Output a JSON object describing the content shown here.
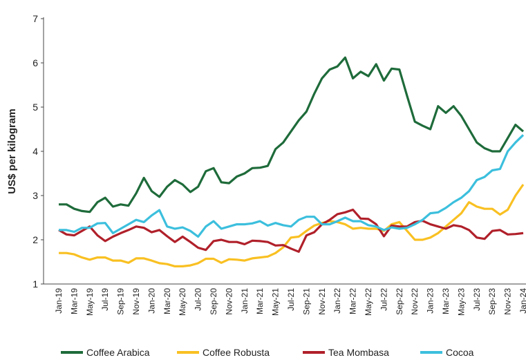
{
  "chart_data": {
    "type": "line",
    "y_label": "US$ per kilogram",
    "categories": [
      "Jan-19",
      null,
      "Mar-19",
      null,
      "May-19",
      null,
      "Jul-19",
      null,
      "Sep-19",
      null,
      "Nov-19",
      null,
      "Jan-20",
      null,
      "Mar-20",
      null,
      "May-20",
      null,
      "Jul-20",
      null,
      "Sep-20",
      null,
      "Nov-20",
      null,
      "Jan-21",
      null,
      "Mar-21",
      null,
      "May-21",
      null,
      "Jul-21",
      null,
      "Sep-21",
      null,
      "Nov-21",
      null,
      "Jan-22",
      null,
      "Mar-22",
      null,
      "May-22",
      null,
      "Jul-22",
      null,
      "Sep-22",
      null,
      "Nov-22",
      null,
      "Jan-23",
      null,
      "Mar-23",
      null,
      "May-23",
      null,
      "Jul-23",
      null,
      "Sep-23",
      null,
      "Nov-23",
      null,
      "Jan-24"
    ],
    "series": [
      {
        "name": "Coffee Arabica",
        "color": "#1e6b3a",
        "values": [
          2.8,
          2.8,
          2.7,
          2.65,
          2.63,
          2.85,
          2.95,
          2.75,
          2.8,
          2.77,
          3.05,
          3.4,
          3.1,
          2.97,
          3.2,
          3.35,
          3.25,
          3.08,
          3.2,
          3.55,
          3.62,
          3.3,
          3.28,
          3.43,
          3.5,
          3.62,
          3.63,
          3.67,
          4.05,
          4.2,
          4.45,
          4.7,
          4.9,
          5.3,
          5.65,
          5.85,
          5.92,
          6.12,
          5.65,
          5.8,
          5.7,
          5.97,
          5.6,
          5.87,
          5.85,
          5.25,
          4.67,
          4.58,
          4.5,
          5.02,
          4.87,
          5.02,
          4.8,
          4.5,
          4.2,
          4.07,
          4.0,
          4.0,
          4.3,
          4.6,
          4.45
        ]
      },
      {
        "name": "Coffee Robusta",
        "color": "#f9c022",
        "values": [
          1.7,
          1.7,
          1.67,
          1.6,
          1.55,
          1.6,
          1.6,
          1.53,
          1.53,
          1.48,
          1.58,
          1.58,
          1.53,
          1.47,
          1.45,
          1.4,
          1.4,
          1.42,
          1.47,
          1.57,
          1.57,
          1.48,
          1.56,
          1.55,
          1.53,
          1.58,
          1.6,
          1.62,
          1.7,
          1.83,
          2.05,
          2.07,
          2.2,
          2.32,
          2.38,
          2.42,
          2.4,
          2.35,
          2.25,
          2.27,
          2.25,
          2.25,
          2.2,
          2.35,
          2.4,
          2.2,
          2.0,
          2.0,
          2.05,
          2.15,
          2.3,
          2.45,
          2.6,
          2.85,
          2.75,
          2.7,
          2.7,
          2.57,
          2.68,
          3.0,
          3.25
        ]
      },
      {
        "name": "Tea Mombasa",
        "color": "#b0202a",
        "values": [
          2.22,
          2.12,
          2.1,
          2.2,
          2.3,
          2.1,
          1.97,
          2.07,
          2.15,
          2.22,
          2.3,
          2.27,
          2.17,
          2.22,
          2.08,
          1.95,
          2.07,
          1.95,
          1.82,
          1.77,
          1.97,
          2.0,
          1.95,
          1.95,
          1.9,
          1.98,
          1.97,
          1.95,
          1.87,
          1.88,
          1.8,
          1.73,
          2.1,
          2.17,
          2.35,
          2.45,
          2.58,
          2.62,
          2.68,
          2.48,
          2.47,
          2.35,
          2.08,
          2.32,
          2.3,
          2.3,
          2.4,
          2.43,
          2.35,
          2.3,
          2.25,
          2.33,
          2.3,
          2.22,
          2.05,
          2.02,
          2.2,
          2.22,
          2.12,
          2.13,
          2.15
        ]
      },
      {
        "name": "Cocoa",
        "color": "#3cbfdd",
        "values": [
          2.22,
          2.22,
          2.18,
          2.27,
          2.27,
          2.37,
          2.38,
          2.15,
          2.25,
          2.35,
          2.45,
          2.4,
          2.55,
          2.67,
          2.3,
          2.25,
          2.28,
          2.2,
          2.07,
          2.3,
          2.42,
          2.25,
          2.3,
          2.35,
          2.35,
          2.37,
          2.42,
          2.32,
          2.38,
          2.33,
          2.3,
          2.45,
          2.52,
          2.52,
          2.35,
          2.35,
          2.42,
          2.5,
          2.42,
          2.42,
          2.33,
          2.3,
          2.22,
          2.28,
          2.25,
          2.27,
          2.35,
          2.45,
          2.6,
          2.62,
          2.72,
          2.85,
          2.95,
          3.1,
          3.35,
          3.42,
          3.57,
          3.6,
          4.0,
          4.2,
          4.37
        ]
      }
    ],
    "ylim": [
      1,
      7
    ],
    "yticks": [
      1,
      2,
      3,
      4,
      5,
      6,
      7
    ],
    "grid": false,
    "legend": "bottom"
  }
}
